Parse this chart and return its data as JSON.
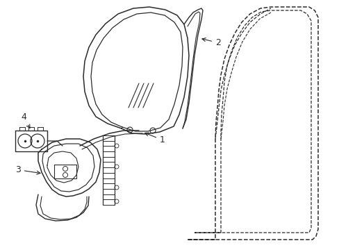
{
  "bg_color": "#ffffff",
  "line_color": "#2a2a2a",
  "lw": 1.0,
  "figsize": [
    4.89,
    3.6
  ],
  "dpi": 100
}
